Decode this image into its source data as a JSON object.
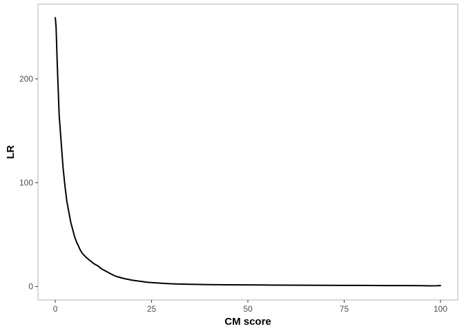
{
  "chart_data": {
    "type": "line",
    "title": "",
    "xlabel": "CM score",
    "ylabel": "LR",
    "xlim": [
      -4.5,
      104.5
    ],
    "ylim": [
      -13,
      272
    ],
    "x_ticks": [
      0,
      25,
      50,
      75,
      100
    ],
    "x_tick_labels": [
      "0",
      "25",
      "50",
      "75",
      "100"
    ],
    "y_ticks": [
      0,
      100,
      200
    ],
    "y_tick_labels": [
      "0",
      "100",
      "200"
    ],
    "grid": false,
    "legend": "none",
    "series": [
      {
        "color": "#000000",
        "x": [
          0,
          0.2,
          0.5,
          1,
          1.5,
          2,
          2.5,
          3,
          3.5,
          4,
          4.5,
          5,
          5.5,
          6,
          6.5,
          7,
          7.5,
          8,
          9,
          10,
          11,
          12,
          13,
          14,
          15,
          16,
          17,
          18,
          20,
          22,
          24,
          26,
          28,
          30,
          35,
          40,
          45,
          50,
          55,
          60,
          65,
          70,
          75,
          80,
          85,
          90,
          95,
          97,
          99,
          100
        ],
        "y": [
          259,
          250,
          215,
          165,
          140,
          115,
          97,
          82,
          72,
          62,
          55,
          48,
          43,
          39,
          35,
          32,
          30,
          28,
          25,
          22,
          20,
          17,
          15,
          13,
          11,
          9.5,
          8.5,
          7.5,
          6,
          5,
          4,
          3.5,
          3,
          2.6,
          2.1,
          1.8,
          1.6,
          1.5,
          1.4,
          1.3,
          1.2,
          1.1,
          1.0,
          1.0,
          0.9,
          0.9,
          0.8,
          0.6,
          0.7,
          0.9
        ]
      }
    ]
  }
}
